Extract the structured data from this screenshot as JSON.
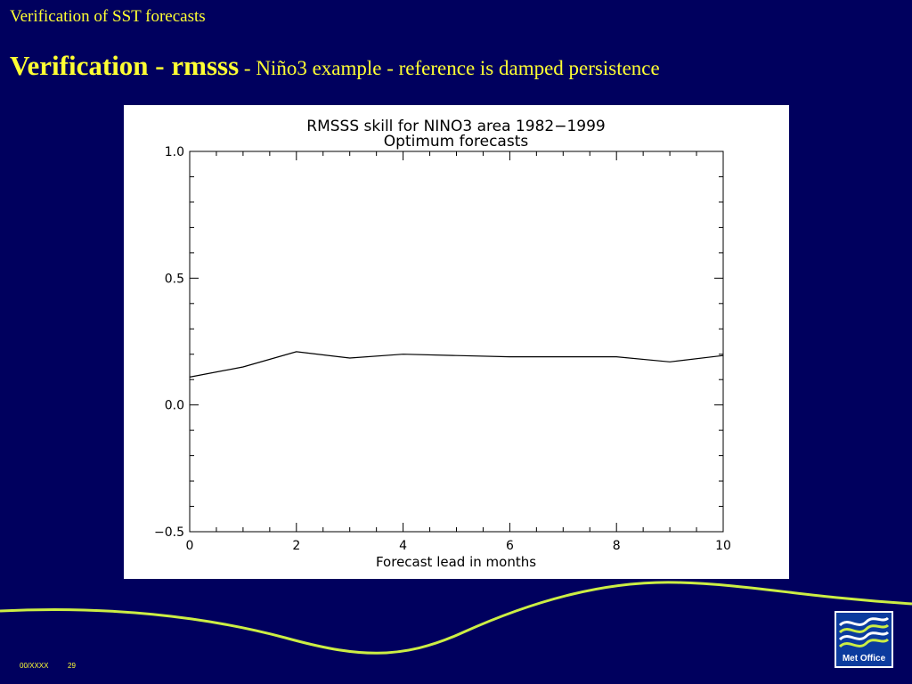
{
  "slide": {
    "top_title": "Verification of SST forecasts",
    "heading_bold": "Verification - rmsss",
    "heading_rest": " - Niño3  example - reference is damped persistence",
    "footer_code": "00/XXXX",
    "page_number": "29",
    "logo_text": "Met Office"
  },
  "colors": {
    "background": "#00005e",
    "title_text": "#ffff33",
    "wave": "#ccee44",
    "logo_bg": "#0b3b9e"
  },
  "chart_data": {
    "type": "line",
    "title": "RMSSS skill for NINO3 area 1982−1999",
    "subtitle": "Optimum forecasts",
    "xlabel": "Forecast lead in months",
    "ylabel": "",
    "xlim": [
      0,
      10
    ],
    "ylim": [
      -0.5,
      1.0
    ],
    "x_ticks": [
      0,
      2,
      4,
      6,
      8,
      10
    ],
    "x_tick_labels": [
      "0",
      "2",
      "4",
      "6",
      "8",
      "10"
    ],
    "y_ticks": [
      -0.5,
      0.0,
      0.5,
      1.0
    ],
    "y_tick_labels": [
      "−0.5",
      "0.0",
      "0.5",
      "1.0"
    ],
    "grid": false,
    "series": [
      {
        "x": [
          0,
          1,
          2,
          3,
          4,
          5,
          6,
          7,
          8,
          9,
          10
        ],
        "y": [
          0.11,
          0.15,
          0.21,
          0.185,
          0.2,
          0.195,
          0.19,
          0.19,
          0.19,
          0.17,
          0.195
        ]
      }
    ]
  }
}
